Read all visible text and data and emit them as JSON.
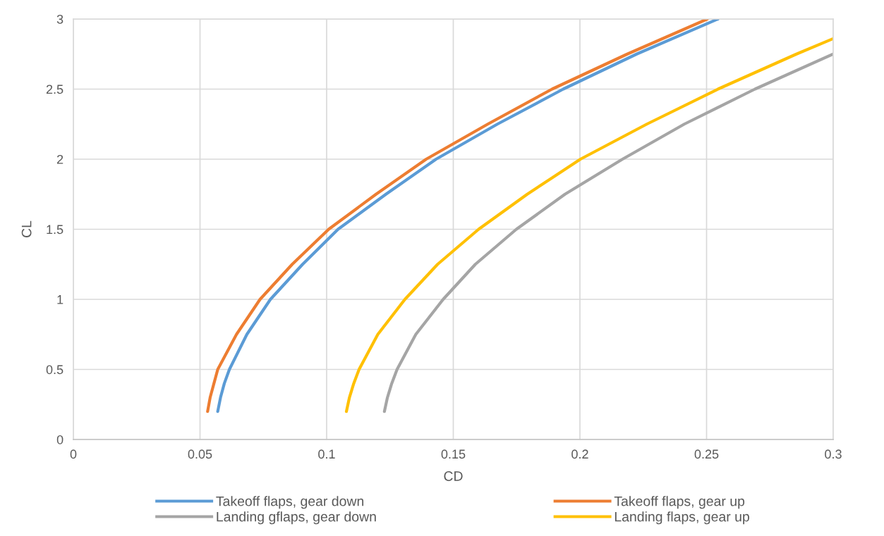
{
  "chart_data": {
    "type": "line",
    "xlabel": "CD",
    "ylabel": "CL",
    "xlim": [
      0,
      0.3
    ],
    "xticks": [
      {
        "value": 0,
        "label": "0"
      },
      0.05,
      0.1,
      0.15,
      0.2,
      0.25,
      0.3
    ],
    "ylim": [
      0,
      3
    ],
    "yticks": [
      {
        "value": 0,
        "label": "0"
      },
      0.5,
      {
        "value": 1,
        "label": "1"
      },
      1.5,
      {
        "value": 2,
        "label": "2"
      },
      2.5,
      {
        "value": 3,
        "label": "3"
      }
    ],
    "grid": true,
    "legend": "bottom",
    "marker": "none",
    "line_style": "solid",
    "series": [
      {
        "name": "Takeoff flaps, gear down",
        "color": "#5b9bd5",
        "x": [
          0.057,
          0.0581,
          0.0596,
          0.0616,
          0.0685,
          0.0778,
          0.0905,
          0.1045,
          0.1234,
          0.1432,
          0.1674,
          0.1934,
          0.2224,
          0.2545
        ],
        "values": [
          0.2,
          0.3,
          0.4,
          0.5,
          0.75,
          1,
          1.25,
          1.5,
          1.75,
          2,
          2.25,
          2.5,
          2.75,
          3
        ]
      },
      {
        "name": "Takeoff flaps, gear up",
        "color": "#ed7d31",
        "x": [
          0.053,
          0.054,
          0.0555,
          0.057,
          0.0644,
          0.0737,
          0.0864,
          0.1008,
          0.1195,
          0.1393,
          0.1636,
          0.189,
          0.2187,
          0.2503
        ],
        "values": [
          0.2,
          0.3,
          0.4,
          0.5,
          0.75,
          1,
          1.25,
          1.5,
          1.75,
          2,
          2.25,
          2.5,
          2.75,
          3
        ]
      },
      {
        "name": "Landing gflaps, gear down",
        "color": "#a5a5a5",
        "x": [
          0.1228,
          0.124,
          0.1257,
          0.1278,
          0.1352,
          0.146,
          0.1587,
          0.1749,
          0.1941,
          0.2168,
          0.2412,
          0.2691,
          0.3
        ],
        "values": [
          0.2,
          0.3,
          0.4,
          0.5,
          0.75,
          1,
          1.25,
          1.5,
          1.75,
          2,
          2.25,
          2.5,
          2.75
        ]
      },
      {
        "name": "Landing flaps, gear up",
        "color": "#ffc000",
        "x": [
          0.1078,
          0.109,
          0.1107,
          0.1128,
          0.1202,
          0.1309,
          0.1438,
          0.16,
          0.1792,
          0.2002,
          0.2264,
          0.2545,
          0.2855,
          0.3
        ],
        "values": [
          0.2,
          0.3,
          0.4,
          0.5,
          0.75,
          1,
          1.25,
          1.5,
          1.75,
          2,
          2.25,
          2.5,
          2.75,
          2.86
        ]
      }
    ]
  }
}
